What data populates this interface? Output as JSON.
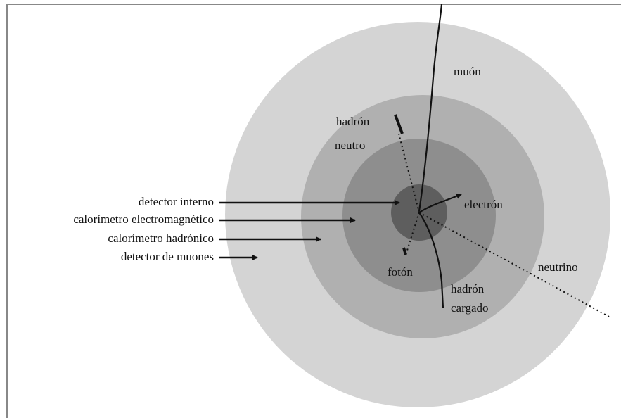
{
  "layers": [
    {
      "label": "detector interno"
    },
    {
      "label": "calorímetro electromagnético"
    },
    {
      "label": "calorímetro hadrónico"
    },
    {
      "label": "detector de muones"
    }
  ],
  "particles": {
    "muon": "muón",
    "neutral_hadron": [
      "hadrón",
      "neutro"
    ],
    "electron": "electrón",
    "photon": "fotón",
    "neutrino": "neutrino",
    "charged_hadron": [
      "hadrón",
      "cargado"
    ]
  }
}
